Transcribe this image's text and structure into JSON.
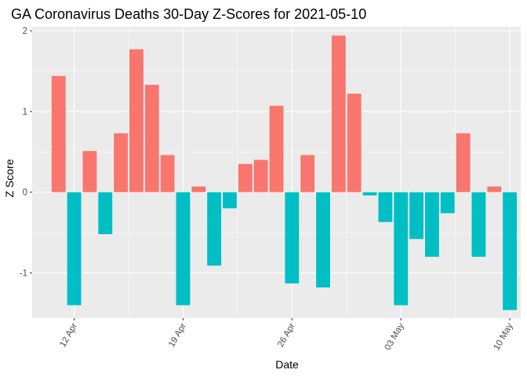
{
  "chart_data": {
    "type": "bar",
    "title": "GA Coronavirus Deaths 30-Day Z-Scores for 2021-05-10",
    "xlabel": "Date",
    "ylabel": "Z Score",
    "ylim": [
      -1.56,
      2.05
    ],
    "yticks": [
      -1,
      0,
      1,
      2
    ],
    "ytick_labels": [
      "-1",
      "0",
      "1",
      "2"
    ],
    "xlim": [
      -0.7,
      30.7
    ],
    "xticks": [
      2,
      9,
      16,
      23,
      30
    ],
    "xtick_labels": [
      "12 Apr",
      "19 Apr",
      "26 Apr",
      "03 May",
      "10 May"
    ],
    "grid": true,
    "legend": "none",
    "positive_color": "#F8766D",
    "negative_color": "#00BFC4",
    "panel_color": "#EBEBEB",
    "dates": [
      "2021-04-11",
      "2021-04-12",
      "2021-04-13",
      "2021-04-14",
      "2021-04-15",
      "2021-04-16",
      "2021-04-17",
      "2021-04-18",
      "2021-04-19",
      "2021-04-20",
      "2021-04-21",
      "2021-04-22",
      "2021-04-23",
      "2021-04-24",
      "2021-04-25",
      "2021-04-26",
      "2021-04-27",
      "2021-04-28",
      "2021-04-29",
      "2021-04-30",
      "2021-05-01",
      "2021-05-02",
      "2021-05-03",
      "2021-05-04",
      "2021-05-05",
      "2021-05-06",
      "2021-05-07",
      "2021-05-08",
      "2021-05-09",
      "2021-05-10"
    ],
    "values": [
      1.44,
      -1.4,
      0.51,
      -0.52,
      0.73,
      1.77,
      1.33,
      0.46,
      -1.4,
      0.07,
      -0.91,
      -0.2,
      0.35,
      0.4,
      1.07,
      -1.13,
      0.46,
      -1.18,
      1.94,
      1.22,
      -0.04,
      -0.37,
      -1.4,
      -0.58,
      -0.8,
      -0.26,
      0.73,
      -0.8,
      0.07,
      -1.46
    ]
  }
}
